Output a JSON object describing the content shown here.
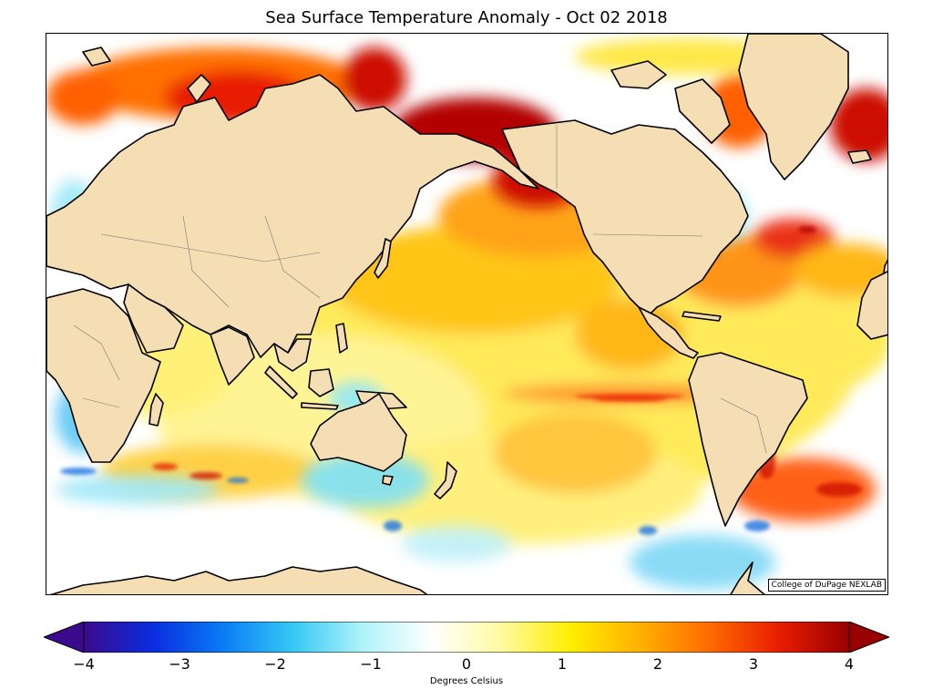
{
  "title": "Sea Surface Temperature Anomaly - Oct 02 2018",
  "credit": "College of DuPage NEXLAB",
  "colorbar": {
    "label": "Degrees Celsius",
    "min": -4,
    "max": 4,
    "ticks": [
      "−4",
      "−3",
      "−2",
      "−1",
      "0",
      "1",
      "2",
      "3",
      "4"
    ],
    "colors": [
      "#3a0a8c",
      "#0a2de0",
      "#0a7cf5",
      "#35c8f5",
      "#aef3f8",
      "#ffffff",
      "#fffaa0",
      "#ffee00",
      "#ffb000",
      "#ff6a00",
      "#e81d00",
      "#990000"
    ]
  },
  "map": {
    "land_color": "#f5deb3",
    "ocean_color": "#ffffff",
    "coast_color": "#000000"
  }
}
